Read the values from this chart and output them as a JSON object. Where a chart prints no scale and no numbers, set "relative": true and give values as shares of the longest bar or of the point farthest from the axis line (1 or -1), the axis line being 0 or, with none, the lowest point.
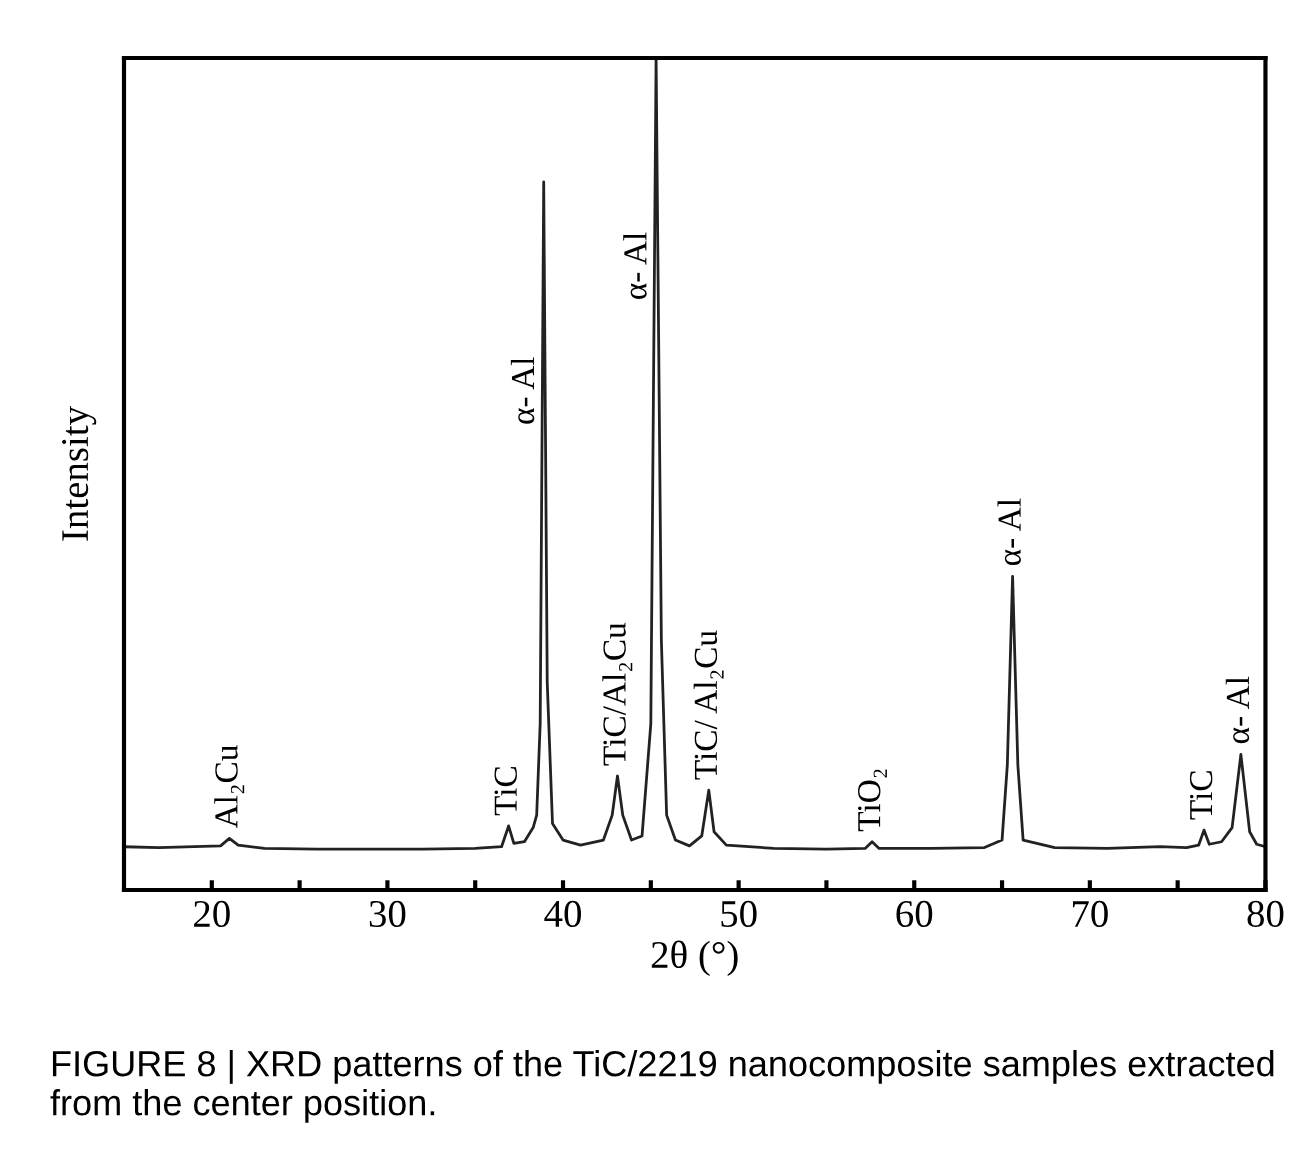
{
  "chart_data": {
    "type": "line",
    "relative": true,
    "xlabel": "2θ (°)",
    "ylabel": "Intensity",
    "xlim": [
      15,
      80
    ],
    "xticks": [
      20,
      {
        "value": 25,
        "label": null
      },
      30,
      {
        "value": 35,
        "label": null
      },
      40,
      {
        "value": 45,
        "label": null
      },
      50,
      {
        "value": 55,
        "label": null
      },
      60,
      {
        "value": 65,
        "label": null
      },
      70,
      {
        "value": 75,
        "label": null
      },
      80
    ],
    "grid": false,
    "marker": "none",
    "line_style": "solid",
    "series": [
      {
        "color": "#222222",
        "x": [
          15,
          17,
          19,
          20.5,
          21.0,
          21.5,
          23,
          26,
          29,
          32,
          35,
          36.5,
          36.9,
          37.2,
          37.8,
          38.3,
          38.5,
          38.7,
          38.9,
          39.1,
          39.4,
          40,
          41,
          42.3,
          42.8,
          43.1,
          43.4,
          43.9,
          44.5,
          45.0,
          45.3,
          45.6,
          45.9,
          46.4,
          47.2,
          47.9,
          48.3,
          48.6,
          49.3,
          52,
          55,
          57.2,
          57.6,
          58.0,
          61,
          64,
          65.0,
          65.3,
          65.6,
          65.9,
          66.2,
          68,
          71,
          74,
          75.5,
          76.2,
          76.5,
          76.8,
          77.5,
          78.1,
          78.6,
          79.1,
          79.5,
          80
        ],
        "values": [
          0.052,
          0.051,
          0.052,
          0.053,
          0.062,
          0.054,
          0.05,
          0.049,
          0.049,
          0.049,
          0.05,
          0.052,
          0.077,
          0.056,
          0.058,
          0.075,
          0.09,
          0.2,
          0.851,
          0.25,
          0.08,
          0.06,
          0.054,
          0.06,
          0.09,
          0.137,
          0.09,
          0.06,
          0.065,
          0.2,
          1.0,
          0.3,
          0.09,
          0.06,
          0.053,
          0.065,
          0.12,
          0.07,
          0.054,
          0.05,
          0.049,
          0.05,
          0.058,
          0.05,
          0.05,
          0.051,
          0.06,
          0.15,
          0.377,
          0.15,
          0.06,
          0.051,
          0.05,
          0.052,
          0.051,
          0.054,
          0.072,
          0.055,
          0.058,
          0.075,
          0.163,
          0.07,
          0.055,
          0.052
        ]
      }
    ],
    "annotations": [
      {
        "text": "Al₂Cu",
        "x": 21.0,
        "y": 0.062
      },
      {
        "text": "TiC",
        "x": 36.9,
        "y": 0.077
      },
      {
        "text": "α- Al",
        "x": 38.9,
        "y": 0.6
      },
      {
        "text": "TiC/Al₂Cu",
        "x": 43.1,
        "y": 0.137
      },
      {
        "text": "α- Al",
        "x": 45.3,
        "y": 0.75
      },
      {
        "text": "TiC/ Al₂Cu",
        "x": 48.3,
        "y": 0.12
      },
      {
        "text": "TiO₂",
        "x": 57.6,
        "y": 0.058
      },
      {
        "text": "α- Al",
        "x": 65.6,
        "y": 0.377
      },
      {
        "text": "TiC",
        "x": 76.5,
        "y": 0.072
      },
      {
        "text": "α- Al",
        "x": 78.6,
        "y": 0.163
      },
      "FIGURE 8 | XRD patterns of the TiC/2219 nanocomposite samples extracted from the center position."
    ]
  }
}
